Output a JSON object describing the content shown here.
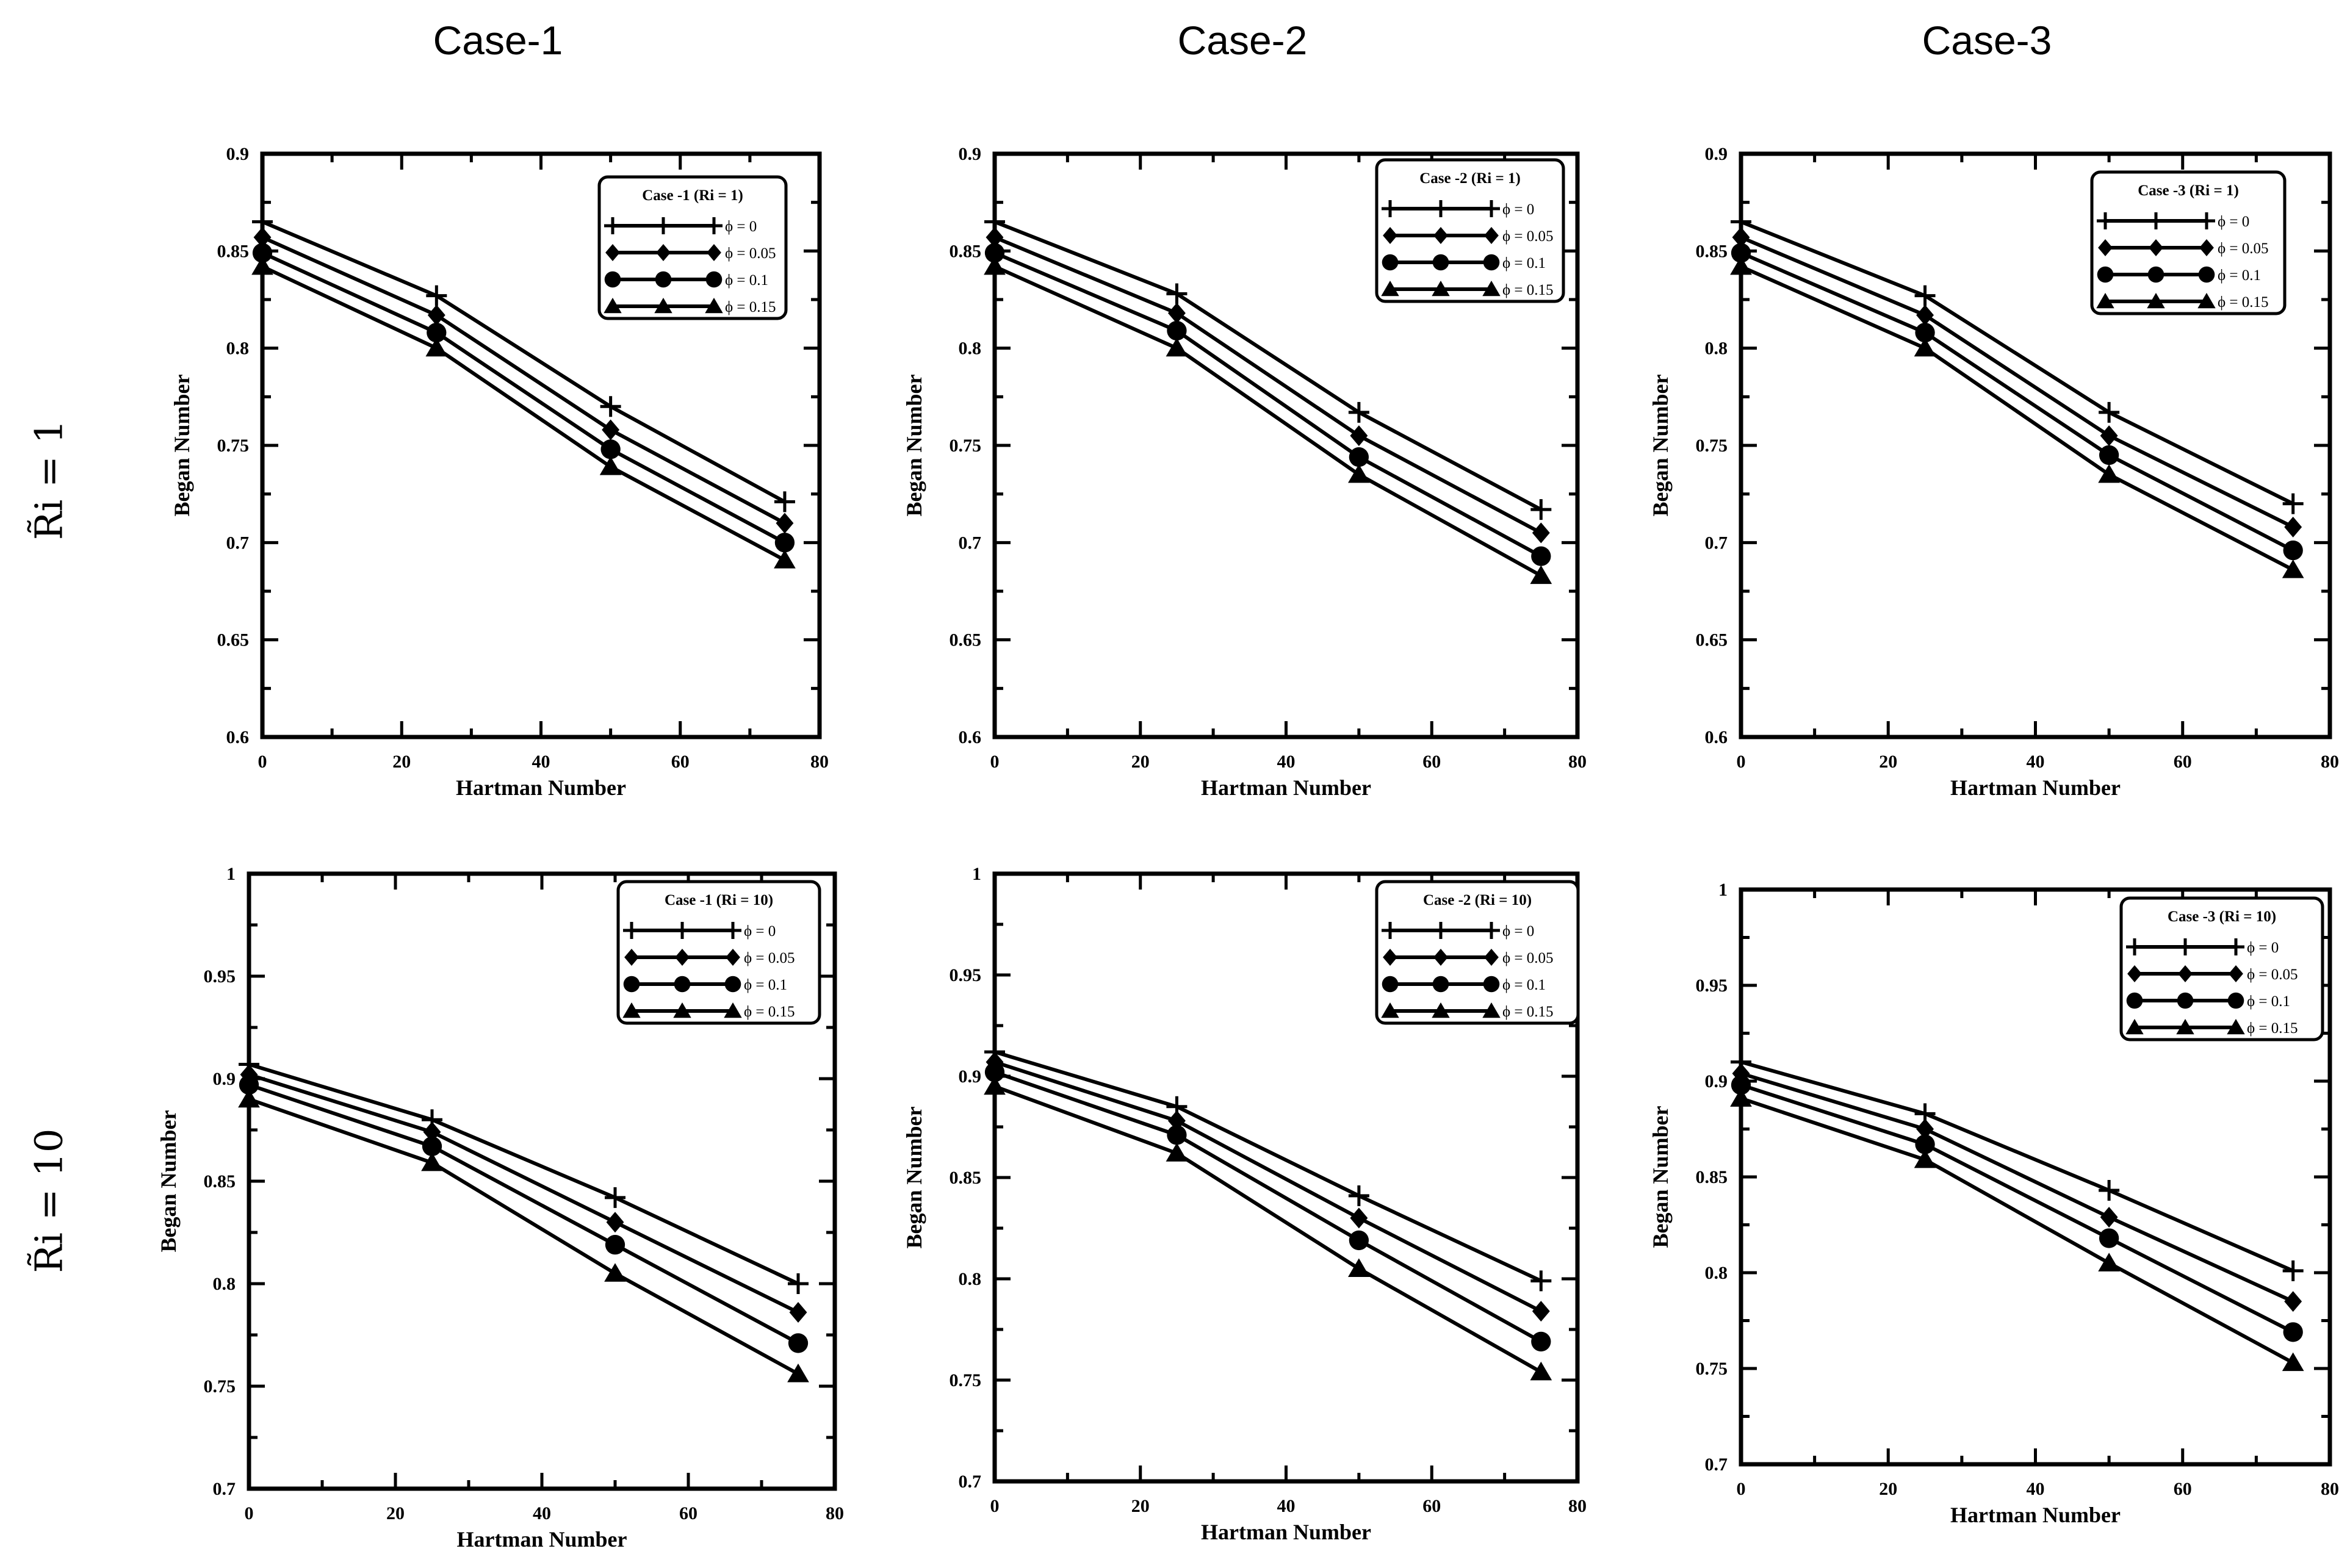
{
  "figure": {
    "column_headers": [
      "Case-1",
      "Case-2",
      "Case-3"
    ],
    "row_headers": [
      "R̃i = 1",
      "R̃i = 10"
    ]
  },
  "chart_data": [
    {
      "type": "line",
      "panel": "case1-ri1",
      "legend_title": "Case -1 (Ri = 1)",
      "xlabel": "Hartman Number",
      "ylabel": "Began Number",
      "xlim": [
        0,
        80
      ],
      "ylim": [
        0.6,
        0.9
      ],
      "xticks": [
        0,
        20,
        40,
        60,
        80
      ],
      "yticks": [
        0.6,
        0.65,
        0.7,
        0.75,
        0.8,
        0.85,
        0.9
      ],
      "x": [
        0,
        25,
        50,
        75
      ],
      "series": [
        {
          "name": "ϕ = 0",
          "marker": "plus",
          "values": [
            0.865,
            0.827,
            0.77,
            0.721
          ]
        },
        {
          "name": "ϕ = 0.05",
          "marker": "diamond",
          "values": [
            0.857,
            0.817,
            0.758,
            0.71
          ]
        },
        {
          "name": "ϕ = 0.1",
          "marker": "circle",
          "values": [
            0.849,
            0.808,
            0.748,
            0.7
          ]
        },
        {
          "name": "ϕ = 0.15",
          "marker": "triangle",
          "values": [
            0.842,
            0.8,
            0.739,
            0.691
          ]
        }
      ]
    },
    {
      "type": "line",
      "panel": "case2-ri1",
      "legend_title": "Case -2 (Ri = 1)",
      "xlabel": "Hartman Number",
      "ylabel": "Began Number",
      "xlim": [
        0,
        80
      ],
      "ylim": [
        0.6,
        0.9
      ],
      "xticks": [
        0,
        20,
        40,
        60,
        80
      ],
      "yticks": [
        0.6,
        0.65,
        0.7,
        0.75,
        0.8,
        0.85,
        0.9
      ],
      "x": [
        0,
        25,
        50,
        75
      ],
      "series": [
        {
          "name": "ϕ = 0",
          "marker": "plus",
          "values": [
            0.865,
            0.828,
            0.767,
            0.717
          ]
        },
        {
          "name": "ϕ = 0.05",
          "marker": "diamond",
          "values": [
            0.857,
            0.818,
            0.755,
            0.705
          ]
        },
        {
          "name": "ϕ = 0.1",
          "marker": "circle",
          "values": [
            0.849,
            0.809,
            0.744,
            0.693
          ]
        },
        {
          "name": "ϕ = 0.15",
          "marker": "triangle",
          "values": [
            0.842,
            0.8,
            0.735,
            0.683
          ]
        }
      ]
    },
    {
      "type": "line",
      "panel": "case3-ri1",
      "legend_title": "Case -3 (Ri = 1)",
      "xlabel": "Hartman Number",
      "ylabel": "Began Number",
      "xlim": [
        0,
        80
      ],
      "ylim": [
        0.6,
        0.9
      ],
      "xticks": [
        0,
        20,
        40,
        60,
        80
      ],
      "yticks": [
        0.6,
        0.65,
        0.7,
        0.75,
        0.8,
        0.85,
        0.9
      ],
      "x": [
        0,
        25,
        50,
        75
      ],
      "series": [
        {
          "name": "ϕ = 0",
          "marker": "plus",
          "values": [
            0.865,
            0.827,
            0.767,
            0.72
          ]
        },
        {
          "name": "ϕ = 0.05",
          "marker": "diamond",
          "values": [
            0.857,
            0.817,
            0.755,
            0.708
          ]
        },
        {
          "name": "ϕ = 0.1",
          "marker": "circle",
          "values": [
            0.849,
            0.808,
            0.745,
            0.696
          ]
        },
        {
          "name": "ϕ = 0.15",
          "marker": "triangle",
          "values": [
            0.842,
            0.8,
            0.735,
            0.686
          ]
        }
      ]
    },
    {
      "type": "line",
      "panel": "case1-ri10",
      "legend_title": "Case -1 (Ri = 10)",
      "xlabel": "Hartman Number",
      "ylabel": "Began Number",
      "xlim": [
        0,
        80
      ],
      "ylim": [
        0.7,
        1.0
      ],
      "xticks": [
        0,
        20,
        40,
        60,
        80
      ],
      "yticks": [
        0.7,
        0.75,
        0.8,
        0.85,
        0.9,
        0.95,
        1
      ],
      "x": [
        0,
        25,
        50,
        75
      ],
      "series": [
        {
          "name": "ϕ = 0",
          "marker": "plus",
          "values": [
            0.907,
            0.88,
            0.842,
            0.8
          ]
        },
        {
          "name": "ϕ = 0.05",
          "marker": "diamond",
          "values": [
            0.902,
            0.874,
            0.83,
            0.786
          ]
        },
        {
          "name": "ϕ = 0.1",
          "marker": "circle",
          "values": [
            0.897,
            0.867,
            0.819,
            0.771
          ]
        },
        {
          "name": "ϕ = 0.15",
          "marker": "triangle",
          "values": [
            0.89,
            0.859,
            0.805,
            0.756
          ]
        }
      ]
    },
    {
      "type": "line",
      "panel": "case2-ri10",
      "legend_title": "Case -2 (Ri = 10)",
      "xlabel": "Hartman Number",
      "ylabel": "Began Number",
      "xlim": [
        0,
        80
      ],
      "ylim": [
        0.7,
        1.0
      ],
      "xticks": [
        0,
        20,
        40,
        60,
        80
      ],
      "yticks": [
        0.7,
        0.75,
        0.8,
        0.85,
        0.9,
        0.95,
        1
      ],
      "x": [
        0,
        25,
        50,
        75
      ],
      "series": [
        {
          "name": "ϕ = 0",
          "marker": "plus",
          "values": [
            0.912,
            0.885,
            0.841,
            0.799
          ]
        },
        {
          "name": "ϕ = 0.05",
          "marker": "diamond",
          "values": [
            0.907,
            0.878,
            0.83,
            0.784
          ]
        },
        {
          "name": "ϕ = 0.1",
          "marker": "circle",
          "values": [
            0.902,
            0.871,
            0.819,
            0.769
          ]
        },
        {
          "name": "ϕ = 0.15",
          "marker": "triangle",
          "values": [
            0.895,
            0.862,
            0.805,
            0.754
          ]
        }
      ]
    },
    {
      "type": "line",
      "panel": "case3-ri10",
      "legend_title": "Case -3 (Ri = 10)",
      "xlabel": "Hartman Number",
      "ylabel": "Began Number",
      "xlim": [
        0,
        80
      ],
      "ylim": [
        0.7,
        1.0
      ],
      "xticks": [
        0,
        20,
        40,
        60,
        80
      ],
      "yticks": [
        0.7,
        0.75,
        0.8,
        0.85,
        0.9,
        0.95,
        1
      ],
      "x": [
        0,
        25,
        50,
        75
      ],
      "series": [
        {
          "name": "ϕ = 0",
          "marker": "plus",
          "values": [
            0.91,
            0.883,
            0.843,
            0.801
          ]
        },
        {
          "name": "ϕ = 0.05",
          "marker": "diamond",
          "values": [
            0.904,
            0.875,
            0.829,
            0.785
          ]
        },
        {
          "name": "ϕ = 0.1",
          "marker": "circle",
          "values": [
            0.898,
            0.867,
            0.818,
            0.769
          ]
        },
        {
          "name": "ϕ = 0.15",
          "marker": "triangle",
          "values": [
            0.891,
            0.859,
            0.805,
            0.753
          ]
        }
      ]
    }
  ]
}
